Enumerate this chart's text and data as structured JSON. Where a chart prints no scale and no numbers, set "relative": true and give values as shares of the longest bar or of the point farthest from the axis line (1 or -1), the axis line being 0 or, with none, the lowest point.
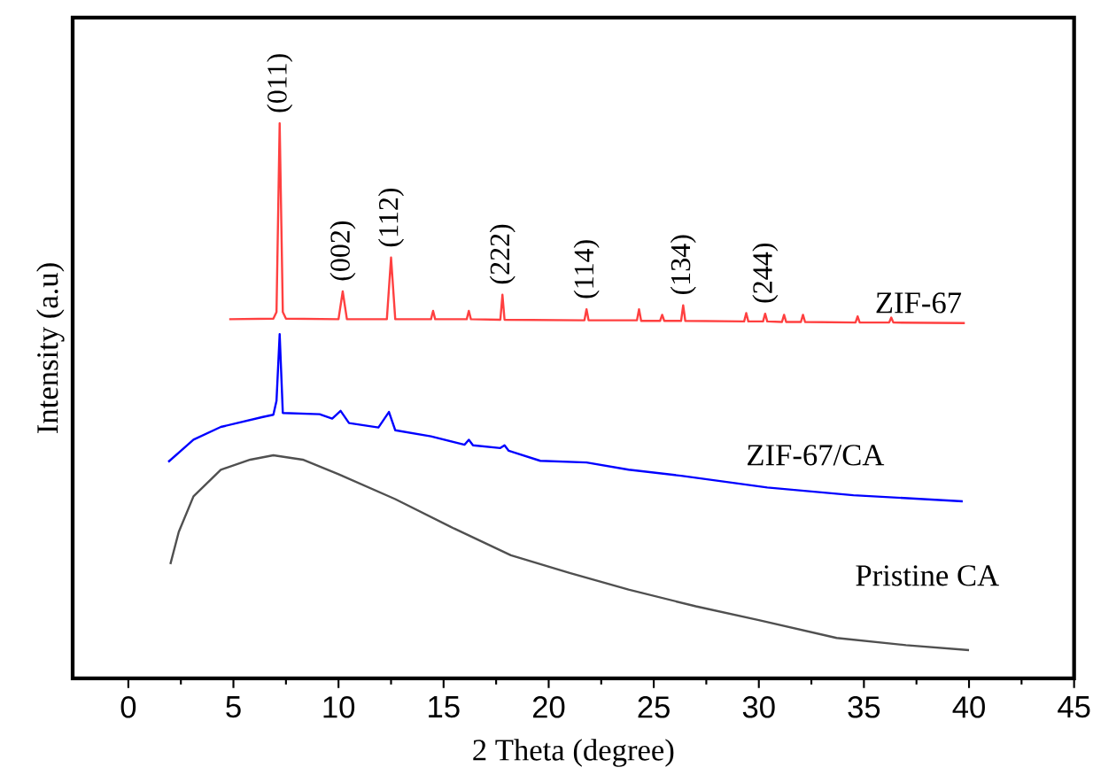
{
  "chart_data": {
    "type": "line",
    "relative": true,
    "xlabel": "2 Theta (degree)",
    "ylabel": "Intensity (a.u)",
    "xlim": [
      -2.65,
      45
    ],
    "xticks": [
      0,
      5,
      10,
      15,
      20,
      25,
      30,
      35,
      40,
      45
    ],
    "grid": false,
    "legend": false,
    "marker": "none",
    "line_style": "solid",
    "series": [
      {
        "name": "ZIF-67",
        "color": "#ff4040",
        "x": [
          4.8,
          6.9,
          7.05,
          7.2,
          7.35,
          7.5,
          10.0,
          10.2,
          10.4,
          12.3,
          12.5,
          12.7,
          14.4,
          14.5,
          14.6,
          16.1,
          16.2,
          16.3,
          17.7,
          17.8,
          17.9,
          21.7,
          21.8,
          21.9,
          24.2,
          24.3,
          24.4,
          25.3,
          25.4,
          25.5,
          26.3,
          26.4,
          26.5,
          29.3,
          29.4,
          29.5,
          30.2,
          30.3,
          30.4,
          31.1,
          31.2,
          31.3,
          32.0,
          32.1,
          32.2,
          34.6,
          34.7,
          34.8,
          36.2,
          36.3,
          36.4,
          39.8
        ],
        "values": [
          0.647,
          0.648,
          0.66,
          1.0,
          0.66,
          0.648,
          0.647,
          0.697,
          0.647,
          0.647,
          0.758,
          0.647,
          0.647,
          0.662,
          0.647,
          0.647,
          0.662,
          0.647,
          0.646,
          0.691,
          0.646,
          0.645,
          0.665,
          0.645,
          0.645,
          0.665,
          0.644,
          0.644,
          0.655,
          0.644,
          0.644,
          0.672,
          0.644,
          0.643,
          0.658,
          0.643,
          0.643,
          0.657,
          0.643,
          0.642,
          0.655,
          0.642,
          0.642,
          0.655,
          0.642,
          0.641,
          0.652,
          0.641,
          0.641,
          0.65,
          0.641,
          0.64
        ]
      },
      {
        "name": "ZIF-67/CA",
        "color": "#0000ff",
        "x": [
          1.9,
          3.1,
          4.4,
          6.4,
          6.9,
          7.05,
          7.2,
          7.35,
          9.1,
          9.7,
          10.1,
          10.5,
          11.9,
          12.4,
          12.7,
          14.4,
          16.0,
          16.2,
          16.4,
          17.7,
          17.9,
          18.1,
          19.6,
          21.8,
          23.8,
          26.3,
          30.4,
          34.5,
          39.7
        ],
        "values": [
          0.39,
          0.43,
          0.453,
          0.471,
          0.475,
          0.5,
          0.62,
          0.478,
          0.476,
          0.468,
          0.482,
          0.46,
          0.452,
          0.48,
          0.447,
          0.436,
          0.421,
          0.43,
          0.42,
          0.415,
          0.42,
          0.41,
          0.392,
          0.389,
          0.376,
          0.365,
          0.344,
          0.33,
          0.319
        ]
      },
      {
        "name": "Pristine CA",
        "color": "#505050",
        "x": [
          2.0,
          2.4,
          3.1,
          4.4,
          5.8,
          6.9,
          8.3,
          10.0,
          12.7,
          15.5,
          18.2,
          21.0,
          23.8,
          27.0,
          30.0,
          33.7,
          37.0,
          40.0
        ],
        "values": [
          0.206,
          0.264,
          0.328,
          0.376,
          0.394,
          0.402,
          0.394,
          0.368,
          0.323,
          0.27,
          0.222,
          0.19,
          0.16,
          0.13,
          0.105,
          0.073,
          0.06,
          0.051
        ]
      }
    ],
    "annotations": [
      {
        "text": "(011)",
        "x": 7.2,
        "y": 1.0
      },
      {
        "text": "(002)",
        "x": 10.2,
        "y": 0.697
      },
      {
        "text": "(112)",
        "x": 12.5,
        "y": 0.758
      },
      {
        "text": "(222)",
        "x": 17.8,
        "y": 0.691
      },
      {
        "text": "(114)",
        "x": 21.8,
        "y": 0.665
      },
      {
        "text": "(134)",
        "x": 26.4,
        "y": 0.672
      },
      {
        "text": "(244)",
        "x": 30.3,
        "y": 0.657
      }
    ]
  }
}
